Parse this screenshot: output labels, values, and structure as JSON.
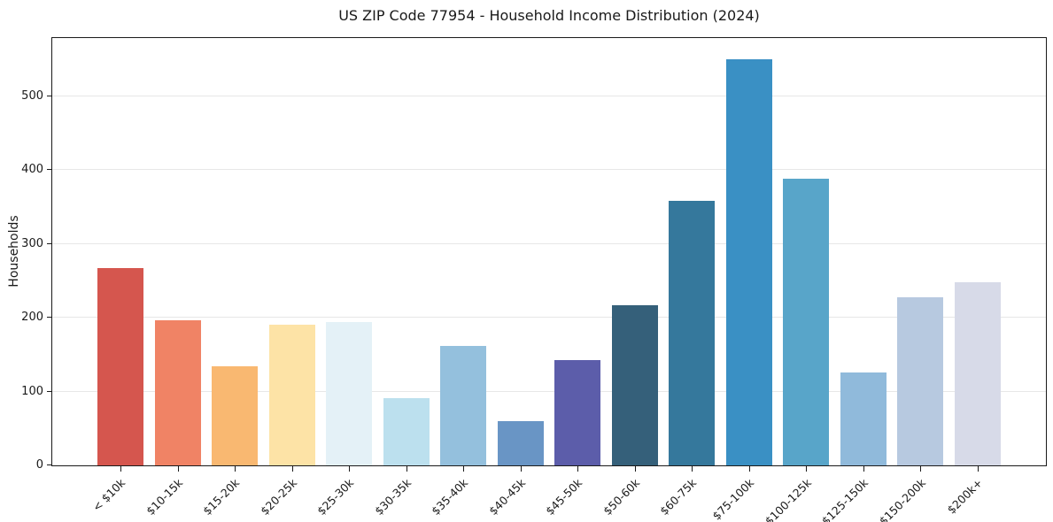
{
  "figure": {
    "title": "US ZIP Code 77954 - Household Income Distribution (2024)",
    "ylabel": "Households"
  },
  "chart_data": {
    "type": "bar",
    "title": "US ZIP Code 77954 - Household Income Distribution (2024)",
    "xlabel": "",
    "ylabel": "Households",
    "categories": [
      "< $10k",
      "$10-15k",
      "$15-20k",
      "$20-25k",
      "$25-30k",
      "$30-35k",
      "$35-40k",
      "$40-45k",
      "$45-50k",
      "$50-60k",
      "$60-75k",
      "$75-100k",
      "$100-125k",
      "$125-150k",
      "$150-200k",
      "$200k+"
    ],
    "values": [
      267,
      197,
      134,
      190,
      194,
      91,
      162,
      60,
      142,
      217,
      358,
      550,
      388,
      126,
      228,
      248
    ],
    "bar_colors": [
      "#d5564e",
      "#f08365",
      "#f9b871",
      "#fde3a6",
      "#e4f1f7",
      "#bce0ee",
      "#94c0dd",
      "#6995c5",
      "#5c5daa",
      "#35607a",
      "#35789c",
      "#3a90c4",
      "#58a5c9",
      "#90badb",
      "#b7c9e0",
      "#d7dae8"
    ],
    "yticks": [
      0,
      100,
      200,
      300,
      400,
      500
    ],
    "ylim": [
      0,
      581
    ],
    "grid": "horizontal-y",
    "legend": "none",
    "axis_color": "#1a1a1a",
    "grid_color": "#e7e7e7",
    "background": "#ffffff"
  }
}
